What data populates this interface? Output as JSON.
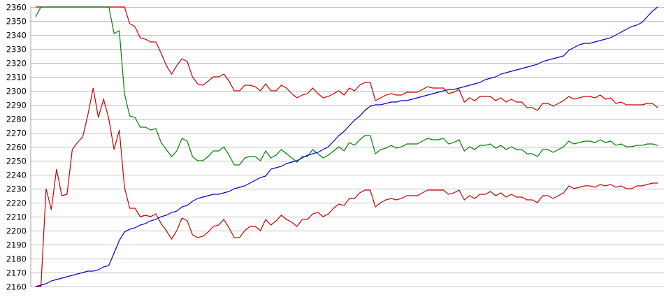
{
  "chart_data": {
    "type": "line",
    "title": "",
    "xlabel": "",
    "ylabel": "",
    "ylim": [
      2160,
      2360
    ],
    "yticks": [
      "2360",
      "2350",
      "2340",
      "2330",
      "2320",
      "2310",
      "2300",
      "2290",
      "2280",
      "2270",
      "2260",
      "2250",
      "2240",
      "2230",
      "2220",
      "2210",
      "2200",
      "2190",
      "2180",
      "2170",
      "2160"
    ],
    "grid": "horizontal",
    "legend": "none",
    "series": [
      {
        "color": "#cc0000",
        "values": [
          2360,
          2360,
          2360,
          2360,
          2360,
          2360,
          2360,
          2360,
          2360,
          2360,
          2360,
          2360,
          2360,
          2360,
          2360,
          2360,
          2360,
          2360,
          2348,
          2346,
          2338,
          2337,
          2335,
          2335,
          2327,
          2318,
          2312,
          2318,
          2323,
          2321,
          2310,
          2305,
          2304,
          2307,
          2310,
          2310,
          2312,
          2307,
          2300,
          2300,
          2304,
          2304,
          2303,
          2300,
          2305,
          2300,
          2300,
          2304,
          2302,
          2298,
          2295,
          2297,
          2298,
          2302,
          2298,
          2295,
          2296,
          2298,
          2300,
          2297,
          2302,
          2300,
          2304,
          2306,
          2306,
          2293,
          2295,
          2297,
          2298,
          2297,
          2297,
          2299,
          2299,
          2299,
          2301,
          2303,
          2302,
          2302,
          2302,
          2298,
          2299,
          2301,
          2292,
          2295,
          2293,
          2296,
          2296,
          2296,
          2293,
          2295,
          2292,
          2294,
          2292,
          2292,
          2288,
          2288,
          2286,
          2291,
          2291,
          2289,
          2291,
          2293,
          2296,
          2294,
          2295,
          2296,
          2296,
          2295,
          2297,
          2294,
          2295,
          2291,
          2292,
          2290,
          2290,
          2290,
          2290,
          2291,
          2291,
          2288
        ]
      },
      {
        "color": "#008000",
        "values": [
          2353,
          2360,
          2360,
          2360,
          2360,
          2360,
          2360,
          2360,
          2360,
          2360,
          2360,
          2360,
          2360,
          2360,
          2360,
          2341,
          2343,
          2298,
          2282,
          2281,
          2274,
          2274,
          2272,
          2273,
          2263,
          2258,
          2253,
          2257,
          2266,
          2264,
          2253,
          2250,
          2250,
          2253,
          2257,
          2257,
          2260,
          2254,
          2247,
          2247,
          2252,
          2253,
          2253,
          2250,
          2257,
          2252,
          2254,
          2258,
          2255,
          2252,
          2249,
          2253,
          2253,
          2258,
          2255,
          2252,
          2254,
          2257,
          2260,
          2257,
          2263,
          2261,
          2265,
          2268,
          2268,
          2255,
          2258,
          2259,
          2261,
          2259,
          2260,
          2262,
          2262,
          2262,
          2264,
          2266,
          2265,
          2265,
          2266,
          2262,
          2263,
          2265,
          2257,
          2260,
          2258,
          2261,
          2261,
          2262,
          2259,
          2261,
          2258,
          2260,
          2258,
          2258,
          2255,
          2255,
          2253,
          2258,
          2258,
          2256,
          2258,
          2260,
          2264,
          2262,
          2263,
          2264,
          2264,
          2263,
          2265,
          2263,
          2264,
          2261,
          2262,
          2260,
          2260,
          2261,
          2261,
          2262,
          2262,
          2261
        ]
      },
      {
        "color": "#cc0000",
        "values": [
          2160,
          2160,
          2230,
          2215,
          2244,
          2225,
          2226,
          2258,
          2263,
          2267,
          2283,
          2302,
          2281,
          2294,
          2280,
          2258,
          2272,
          2231,
          2216,
          2216,
          2210,
          2211,
          2210,
          2212,
          2205,
          2200,
          2194,
          2200,
          2209,
          2207,
          2197,
          2195,
          2196,
          2199,
          2203,
          2204,
          2208,
          2202,
          2195,
          2195,
          2200,
          2203,
          2203,
          2200,
          2208,
          2204,
          2207,
          2211,
          2208,
          2206,
          2203,
          2208,
          2208,
          2212,
          2213,
          2210,
          2212,
          2216,
          2219,
          2218,
          2223,
          2223,
          2227,
          2229,
          2229,
          2217,
          2220,
          2222,
          2223,
          2222,
          2223,
          2225,
          2225,
          2225,
          2227,
          2229,
          2229,
          2229,
          2229,
          2226,
          2227,
          2229,
          2222,
          2225,
          2223,
          2226,
          2226,
          2228,
          2225,
          2227,
          2224,
          2226,
          2224,
          2224,
          2222,
          2222,
          2220,
          2225,
          2225,
          2223,
          2225,
          2227,
          2232,
          2230,
          2231,
          2232,
          2232,
          2231,
          2233,
          2232,
          2233,
          2231,
          2232,
          2230,
          2230,
          2232,
          2232,
          2233,
          2234,
          2234
        ]
      },
      {
        "color": "#0000cc",
        "values": [
          2160,
          2161,
          2162,
          2164,
          2165,
          2166,
          2167,
          2168,
          2169,
          2170,
          2171,
          2171,
          2172,
          2174,
          2175,
          2184,
          2193,
          2199,
          2201,
          2202,
          2204,
          2205,
          2207,
          2208,
          2210,
          2211,
          2213,
          2214,
          2217,
          2218,
          2221,
          2223,
          2224,
          2225,
          2226,
          2226,
          2227,
          2228,
          2230,
          2231,
          2232,
          2234,
          2236,
          2238,
          2239,
          2244,
          2245,
          2246,
          2248,
          2249,
          2250,
          2252,
          2254,
          2255,
          2256,
          2258,
          2260,
          2264,
          2268,
          2271,
          2275,
          2279,
          2282,
          2286,
          2289,
          2290,
          2290,
          2291,
          2292,
          2292,
          2293,
          2293,
          2294,
          2295,
          2296,
          2297,
          2298,
          2299,
          2300,
          2301,
          2301,
          2302,
          2303,
          2304,
          2305,
          2306,
          2308,
          2309,
          2310,
          2312,
          2313,
          2314,
          2315,
          2316,
          2317,
          2318,
          2319,
          2321,
          2322,
          2323,
          2324,
          2325,
          2329,
          2331,
          2333,
          2334,
          2334,
          2335,
          2336,
          2337,
          2338,
          2340,
          2342,
          2344,
          2346,
          2347,
          2349,
          2353,
          2357,
          2360
        ]
      }
    ]
  }
}
